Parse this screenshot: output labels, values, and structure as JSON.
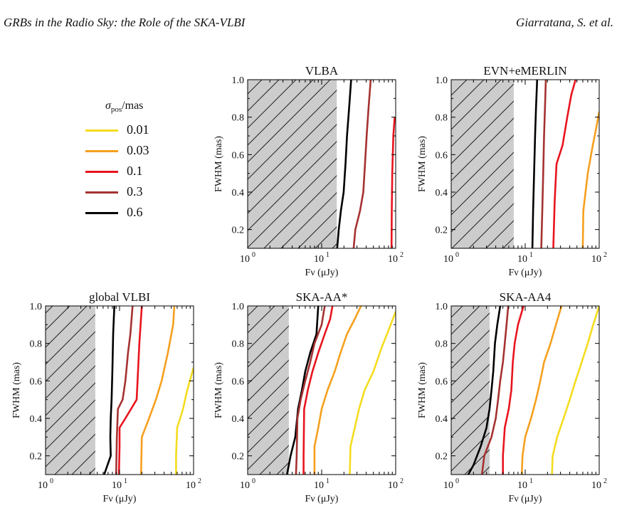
{
  "header": {
    "left": "GRBs in the Radio Sky: the Role of the SKA-VLBI",
    "right": "Giarratana, S. et al."
  },
  "legend": {
    "title": "σpos/mas",
    "items": [
      {
        "label": "0.01",
        "color": "#f5dc1e"
      },
      {
        "label": "0.03",
        "color": "#f5a01e"
      },
      {
        "label": "0.1",
        "color": "#e8141e"
      },
      {
        "label": "0.3",
        "color": "#a53232"
      },
      {
        "label": "0.6",
        "color": "#000000"
      }
    ]
  },
  "chart_data": [
    {
      "type": "line",
      "title": "VLBA",
      "xlabel": "Fν (μJy)",
      "ylabel": "FWHM (mas)",
      "xscale": "log",
      "xlim": [
        1,
        100
      ],
      "ylim": [
        0.1,
        1.0
      ],
      "xticks": [
        "10^0",
        "10^1",
        "10^2"
      ],
      "yticks": [
        "0.2",
        "0.4",
        "0.6",
        "0.8",
        "1.0"
      ],
      "excluded_below_flux": 16,
      "series": [
        {
          "name": "0.6",
          "color": "#000000",
          "points": [
            [
              16.2,
              0.1
            ],
            [
              17,
              0.2
            ],
            [
              18.2,
              0.3
            ],
            [
              19.8,
              0.4
            ],
            [
              21,
              0.55
            ],
            [
              22,
              0.7
            ],
            [
              23.5,
              0.85
            ],
            [
              25,
              1.0
            ]
          ]
        },
        {
          "name": "0.3",
          "color": "#a53232",
          "points": [
            [
              27,
              0.1
            ],
            [
              28.5,
              0.2
            ],
            [
              33,
              0.3
            ],
            [
              36.5,
              0.4
            ],
            [
              38.5,
              0.55
            ],
            [
              40.5,
              0.7
            ],
            [
              43,
              0.85
            ],
            [
              46,
              1.0
            ]
          ]
        },
        {
          "name": "0.1",
          "color": "#e8141e",
          "points": [
            [
              88,
              0.1
            ],
            [
              88.5,
              0.3
            ],
            [
              90,
              0.5
            ],
            [
              93,
              0.7
            ],
            [
              97,
              0.8
            ]
          ]
        }
      ]
    },
    {
      "type": "line",
      "title": "EVN+eMERLIN",
      "xlabel": "Fν (μJy)",
      "ylabel": "FWHM (mas)",
      "xscale": "log",
      "xlim": [
        1,
        100
      ],
      "ylim": [
        0.1,
        1.0
      ],
      "xticks": [
        "10^0",
        "10^1",
        "10^2"
      ],
      "yticks": [
        "0.2",
        "0.4",
        "0.6",
        "0.8",
        "1.0"
      ],
      "excluded_below_flux": 7,
      "series": [
        {
          "name": "0.6",
          "color": "#000000",
          "points": [
            [
              12.5,
              0.1
            ],
            [
              12.8,
              0.3
            ],
            [
              13.2,
              0.5
            ],
            [
              13.6,
              0.7
            ],
            [
              14,
              0.85
            ],
            [
              14.5,
              1.0
            ]
          ]
        },
        {
          "name": "0.3",
          "color": "#a53232",
          "points": [
            [
              16.5,
              0.1
            ],
            [
              17,
              0.3
            ],
            [
              17.5,
              0.5
            ],
            [
              18,
              0.7
            ],
            [
              18.5,
              0.85
            ],
            [
              19,
              1.0
            ]
          ]
        },
        {
          "name": "0.1",
          "color": "#e8141e",
          "points": [
            [
              24,
              0.1
            ],
            [
              25,
              0.35
            ],
            [
              26.5,
              0.55
            ],
            [
              32,
              0.65
            ],
            [
              37,
              0.8
            ],
            [
              42,
              0.92
            ],
            [
              48,
              1.0
            ]
          ]
        },
        {
          "name": "0.03",
          "color": "#f5a01e",
          "points": [
            [
              60,
              0.1
            ],
            [
              61,
              0.3
            ],
            [
              70,
              0.5
            ],
            [
              82,
              0.65
            ],
            [
              92,
              0.75
            ],
            [
              100,
              0.83
            ]
          ]
        }
      ]
    },
    {
      "type": "line",
      "title": "global VLBI",
      "xlabel": "Fν (μJy)",
      "ylabel": "FWHM (mas)",
      "xscale": "log",
      "xlim": [
        1,
        100
      ],
      "ylim": [
        0.1,
        1.0
      ],
      "xticks": [
        "10^0",
        "10^1",
        "10^2"
      ],
      "yticks": [
        "0.2",
        "0.4",
        "0.6",
        "0.8",
        "1.0"
      ],
      "excluded_below_flux": 4.7,
      "series": [
        {
          "name": "0.6",
          "color": "#000000",
          "points": [
            [
              6.2,
              0.1
            ],
            [
              7.6,
              0.2
            ],
            [
              7.5,
              0.3
            ],
            [
              7.6,
              0.4
            ],
            [
              7.8,
              0.5
            ],
            [
              8,
              0.65
            ],
            [
              8.2,
              0.85
            ],
            [
              8.5,
              1.0
            ]
          ]
        },
        {
          "name": "0.3",
          "color": "#a53232",
          "points": [
            [
              9,
              0.1
            ],
            [
              9.2,
              0.3
            ],
            [
              9.5,
              0.45
            ],
            [
              11,
              0.5
            ],
            [
              12,
              0.6
            ],
            [
              13,
              0.75
            ],
            [
              14,
              0.85
            ],
            [
              15,
              1.0
            ]
          ]
        },
        {
          "name": "0.1",
          "color": "#e8141e",
          "points": [
            [
              9.8,
              0.1
            ],
            [
              10,
              0.25
            ],
            [
              10,
              0.35
            ],
            [
              12,
              0.4
            ],
            [
              17,
              0.5
            ],
            [
              17.5,
              0.6
            ],
            [
              18.5,
              0.8
            ],
            [
              20,
              1.0
            ]
          ]
        },
        {
          "name": "0.03",
          "color": "#f5a01e",
          "points": [
            [
              19.5,
              0.1
            ],
            [
              20,
              0.3
            ],
            [
              25,
              0.4
            ],
            [
              31,
              0.5
            ],
            [
              37,
              0.6
            ],
            [
              45,
              0.75
            ],
            [
              53,
              0.9
            ],
            [
              55,
              1.0
            ]
          ]
        },
        {
          "name": "0.01",
          "color": "#f5dc1e",
          "points": [
            [
              58,
              0.1
            ],
            [
              58,
              0.2
            ],
            [
              60,
              0.35
            ],
            [
              66,
              0.4
            ],
            [
              72,
              0.45
            ],
            [
              82,
              0.55
            ],
            [
              92,
              0.62
            ],
            [
              100,
              0.67
            ]
          ]
        }
      ]
    },
    {
      "type": "line",
      "title": "SKA-AA*",
      "xlabel": "Fν (μJy)",
      "ylabel": "FWHM (mas)",
      "xscale": "log",
      "xlim": [
        1,
        100
      ],
      "ylim": [
        0.1,
        1.0
      ],
      "xticks": [
        "10^0",
        "10^1",
        "10^2"
      ],
      "yticks": [
        "0.2",
        "0.4",
        "0.6",
        "0.8",
        "1.0"
      ],
      "excluded_below_flux": 3.6,
      "series": [
        {
          "name": "0.6",
          "color": "#000000",
          "points": [
            [
              3.4,
              0.1
            ],
            [
              3.8,
              0.2
            ],
            [
              4.4,
              0.3
            ],
            [
              4.8,
              0.45
            ],
            [
              5.4,
              0.55
            ],
            [
              6,
              0.65
            ],
            [
              7,
              0.75
            ],
            [
              8.5,
              0.85
            ],
            [
              9,
              1.0
            ]
          ]
        },
        {
          "name": "0.3",
          "color": "#a53232",
          "points": [
            [
              4.5,
              0.1
            ],
            [
              4.6,
              0.2
            ],
            [
              4.7,
              0.4
            ],
            [
              5.2,
              0.5
            ],
            [
              6,
              0.6
            ],
            [
              7,
              0.7
            ],
            [
              8,
              0.8
            ],
            [
              10,
              0.9
            ],
            [
              11,
              1.0
            ]
          ]
        },
        {
          "name": "0.1",
          "color": "#e8141e",
          "points": [
            [
              5.7,
              0.1
            ],
            [
              5.7,
              0.2
            ],
            [
              5.8,
              0.45
            ],
            [
              6.5,
              0.55
            ],
            [
              7.5,
              0.65
            ],
            [
              9,
              0.75
            ],
            [
              11,
              0.85
            ],
            [
              13,
              0.93
            ],
            [
              14,
              1.0
            ]
          ]
        },
        {
          "name": "0.03",
          "color": "#f5a01e",
          "points": [
            [
              8,
              0.1
            ],
            [
              8,
              0.25
            ],
            [
              9,
              0.35
            ],
            [
              10,
              0.45
            ],
            [
              12,
              0.55
            ],
            [
              15,
              0.65
            ],
            [
              18,
              0.75
            ],
            [
              22,
              0.85
            ],
            [
              28,
              0.93
            ],
            [
              34,
              1.0
            ]
          ]
        },
        {
          "name": "0.01",
          "color": "#f5dc1e",
          "points": [
            [
              24,
              0.1
            ],
            [
              24.5,
              0.25
            ],
            [
              28,
              0.35
            ],
            [
              32,
              0.45
            ],
            [
              38,
              0.55
            ],
            [
              50,
              0.65
            ],
            [
              65,
              0.78
            ],
            [
              82,
              0.88
            ],
            [
              100,
              0.97
            ]
          ]
        }
      ]
    },
    {
      "type": "line",
      "title": "SKA-AA4",
      "xlabel": "Fν (μJy)",
      "ylabel": "FWHM (mas)",
      "xscale": "log",
      "xlim": [
        1,
        100
      ],
      "ylim": [
        0.1,
        1.0
      ],
      "xticks": [
        "10^0",
        "10^1",
        "10^2"
      ],
      "yticks": [
        "0.2",
        "0.4",
        "0.6",
        "0.8",
        "1.0"
      ],
      "excluded_below_flux": 3.3,
      "series": [
        {
          "name": "0.6",
          "color": "#000000",
          "points": [
            [
              1.7,
              0.1
            ],
            [
              2,
              0.15
            ],
            [
              2.5,
              0.25
            ],
            [
              3,
              0.35
            ],
            [
              3.3,
              0.45
            ],
            [
              3.5,
              0.55
            ],
            [
              3.7,
              0.65
            ],
            [
              3.9,
              0.8
            ],
            [
              4.2,
              0.9
            ],
            [
              4.6,
              1.0
            ]
          ]
        },
        {
          "name": "0.3",
          "color": "#a53232",
          "points": [
            [
              2.6,
              0.1
            ],
            [
              2.8,
              0.2
            ],
            [
              3.5,
              0.3
            ],
            [
              4,
              0.4
            ],
            [
              4.3,
              0.5
            ],
            [
              4.6,
              0.6
            ],
            [
              5,
              0.7
            ],
            [
              5.3,
              0.8
            ],
            [
              5.6,
              0.9
            ],
            [
              5.9,
              1.0
            ]
          ]
        },
        {
          "name": "0.1",
          "color": "#e8141e",
          "points": [
            [
              5,
              0.1
            ],
            [
              5,
              0.2
            ],
            [
              5.3,
              0.35
            ],
            [
              6,
              0.45
            ],
            [
              6.5,
              0.55
            ],
            [
              6.8,
              0.7
            ],
            [
              7.2,
              0.8
            ],
            [
              8,
              0.9
            ],
            [
              9.5,
              1.0
            ]
          ]
        },
        {
          "name": "0.03",
          "color": "#f5a01e",
          "points": [
            [
              9,
              0.1
            ],
            [
              9.2,
              0.2
            ],
            [
              10,
              0.3
            ],
            [
              12,
              0.4
            ],
            [
              14,
              0.5
            ],
            [
              16,
              0.6
            ],
            [
              18,
              0.7
            ],
            [
              22,
              0.8
            ],
            [
              26,
              0.9
            ],
            [
              31,
              1.0
            ]
          ]
        },
        {
          "name": "0.01",
          "color": "#f5dc1e",
          "points": [
            [
              23,
              0.1
            ],
            [
              23.5,
              0.2
            ],
            [
              27,
              0.3
            ],
            [
              33,
              0.4
            ],
            [
              40,
              0.5
            ],
            [
              48,
              0.6
            ],
            [
              58,
              0.7
            ],
            [
              70,
              0.8
            ],
            [
              83,
              0.9
            ],
            [
              100,
              1.0
            ]
          ]
        }
      ]
    }
  ]
}
